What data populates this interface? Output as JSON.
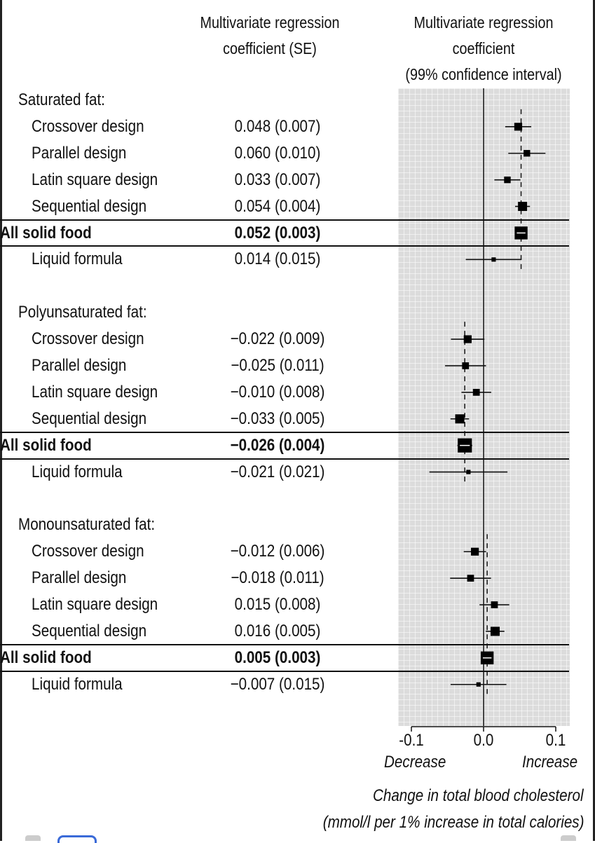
{
  "columns": {
    "coef_header": [
      "Multivariate regression",
      "coefficient (SE)"
    ],
    "ci_header": [
      "Multivariate regression",
      "coefficient",
      "(99% confidence interval)"
    ]
  },
  "chart_data": {
    "type": "forest",
    "xlim": [
      -0.115,
      0.115
    ],
    "xticks": [
      -0.1,
      0.0,
      0.1
    ],
    "xtick_labels": [
      "-0.1",
      "0.0",
      "0.1"
    ],
    "x_left_label": "Decrease",
    "x_right_label": "Increase",
    "xlabel": [
      "Change in total blood cholesterol",
      "(mmol/l per 1% increase in total calories)"
    ],
    "groups": [
      {
        "title": "Saturated fat:",
        "pooled": 0.052,
        "rows": [
          {
            "label": "Crossover design",
            "text": "0.048 (0.007)",
            "est": 0.048,
            "se": 0.007,
            "weight": 2
          },
          {
            "label": "Parallel design",
            "text": "0.060 (0.010)",
            "est": 0.06,
            "se": 0.01,
            "weight": 1.5
          },
          {
            "label": "Latin square design",
            "text": "0.033 (0.007)",
            "est": 0.033,
            "se": 0.007,
            "weight": 1.5
          },
          {
            "label": "Sequential design",
            "text": "0.054 (0.004)",
            "est": 0.054,
            "se": 0.004,
            "weight": 2.5
          },
          {
            "label": "All solid food",
            "text": "0.052 (0.003)",
            "est": 0.052,
            "se": 0.003,
            "weight": 4,
            "summary": true
          },
          {
            "label": "Liquid formula",
            "text": "0.014 (0.015)",
            "est": 0.014,
            "se": 0.015,
            "weight": 0.6
          }
        ]
      },
      {
        "title": "Polyunsaturated fat:",
        "pooled": -0.026,
        "rows": [
          {
            "label": "Crossover design",
            "text": "−0.022 (0.009)",
            "est": -0.022,
            "se": 0.009,
            "weight": 2
          },
          {
            "label": "Parallel design",
            "text": "−0.025 (0.011)",
            "est": -0.025,
            "se": 0.011,
            "weight": 1.6
          },
          {
            "label": "Latin square design",
            "text": "−0.010 (0.008)",
            "est": -0.01,
            "se": 0.008,
            "weight": 1.6
          },
          {
            "label": "Sequential design",
            "text": "−0.033 (0.005)",
            "est": -0.033,
            "se": 0.005,
            "weight": 2.5
          },
          {
            "label": "All solid food",
            "text": "−0.026 (0.004)",
            "est": -0.026,
            "se": 0.004,
            "weight": 4.5,
            "summary": true
          },
          {
            "label": "Liquid formula",
            "text": "−0.021 (0.021)",
            "est": -0.021,
            "se": 0.021,
            "weight": 0.6
          }
        ]
      },
      {
        "title": "Monounsaturated fat:",
        "pooled": 0.005,
        "rows": [
          {
            "label": "Crossover design",
            "text": "−0.012 (0.006)",
            "est": -0.012,
            "se": 0.006,
            "weight": 2
          },
          {
            "label": "Parallel design",
            "text": "−0.018 (0.011)",
            "est": -0.018,
            "se": 0.011,
            "weight": 1.6
          },
          {
            "label": "Latin square design",
            "text": "0.015 (0.008)",
            "est": 0.015,
            "se": 0.008,
            "weight": 1.6
          },
          {
            "label": "Sequential design",
            "text": "0.016 (0.005)",
            "est": 0.016,
            "se": 0.005,
            "weight": 2.5
          },
          {
            "label": "All solid food",
            "text": "0.005 (0.003)",
            "est": 0.005,
            "se": 0.003,
            "weight": 4,
            "summary": true
          },
          {
            "label": "Liquid formula",
            "text": "−0.007 (0.015)",
            "est": -0.007,
            "se": 0.015,
            "weight": 0.6
          }
        ]
      }
    ]
  }
}
